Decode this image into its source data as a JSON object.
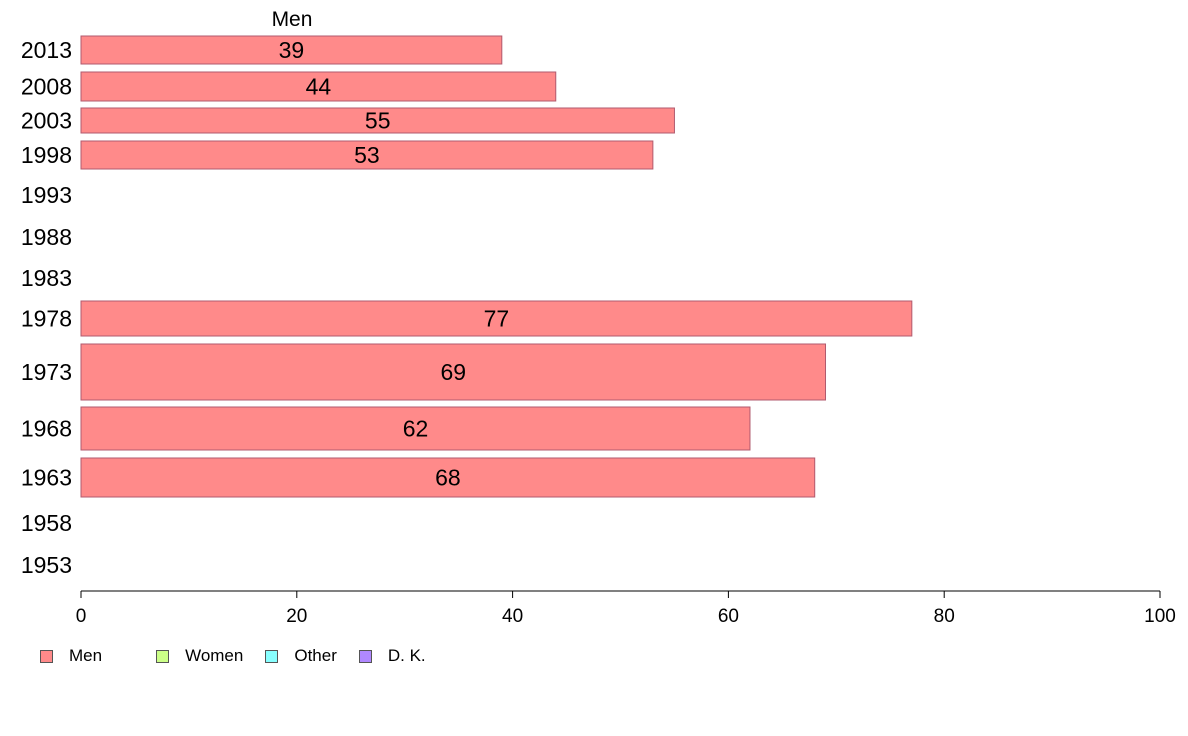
{
  "chart_data": {
    "type": "bar",
    "orientation": "horizontal",
    "title": "Men",
    "categories": [
      "2013",
      "2008",
      "2003",
      "1998",
      "1993",
      "1988",
      "1983",
      "1978",
      "1973",
      "1968",
      "1963",
      "1958",
      "1953"
    ],
    "series": [
      {
        "name": "Men",
        "values": [
          39,
          44,
          55,
          53,
          null,
          null,
          null,
          77,
          69,
          62,
          68,
          null,
          null
        ],
        "color": "#ff8a8a"
      }
    ],
    "data_labels": [
      "39",
      "44",
      "55",
      "53",
      "",
      "",
      "",
      "77",
      "69",
      "62",
      "68",
      "",
      ""
    ],
    "xlim": [
      0,
      100
    ],
    "x_ticks": [
      "0",
      "20",
      "40",
      "60",
      "80",
      "100"
    ],
    "grid": false,
    "legend_placement": "bottom-left"
  },
  "legend": [
    {
      "label": "Men",
      "color": "#ff8a8a"
    },
    {
      "label": "Women",
      "color": "#ccff88"
    },
    {
      "label": "Other",
      "color": "#88ffff"
    },
    {
      "label": "D. K.",
      "color": "#b088ff"
    }
  ]
}
